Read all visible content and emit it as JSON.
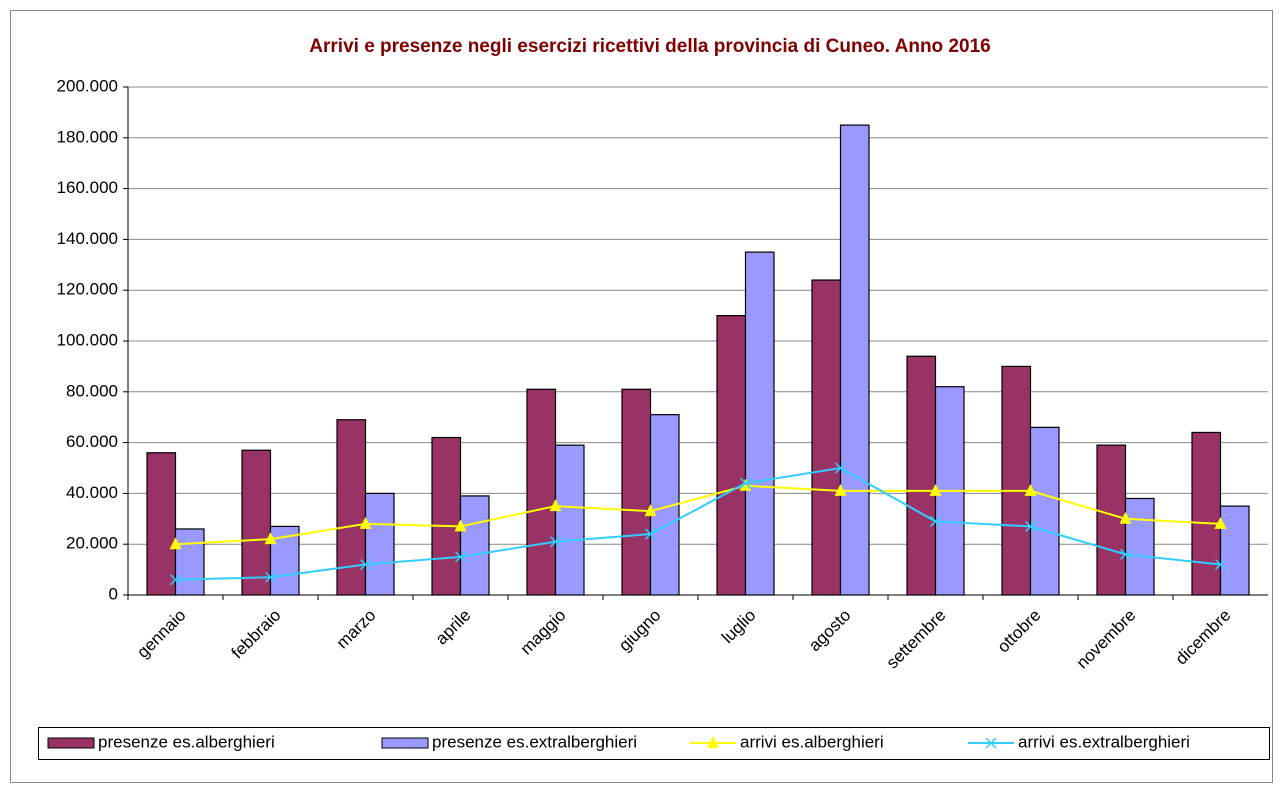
{
  "chart_data": {
    "type": "bar",
    "title": "Arrivi e presenze negli esercizi ricettivi della provincia di Cuneo. Anno 2016",
    "title_color": "#800000",
    "categories": [
      "gennaio",
      "febbraio",
      "marzo",
      "aprile",
      "maggio",
      "giugno",
      "luglio",
      "agosto",
      "settembre",
      "ottobre",
      "novembre",
      "dicembre"
    ],
    "series": [
      {
        "name": "presenze es.alberghieri",
        "color": "#993366",
        "values": [
          56000,
          57000,
          69000,
          62000,
          81000,
          81000,
          110000,
          124000,
          94000,
          90000,
          59000,
          64000
        ]
      },
      {
        "name": "presenze es.extralberghieri",
        "color": "#9999ff",
        "values": [
          26000,
          27000,
          40000,
          39000,
          59000,
          71000,
          135000,
          185000,
          82000,
          66000,
          38000,
          35000
        ]
      },
      {
        "name": "arrivi es.alberghieri",
        "color": "#ffff00",
        "type": "line",
        "marker": "triangle",
        "values": [
          20000,
          22000,
          28000,
          27000,
          35000,
          33000,
          43000,
          41000,
          41000,
          41000,
          30000,
          28000
        ]
      },
      {
        "name": "arrivi es.extralberghieri",
        "color": "#33ccff",
        "type": "line",
        "marker": "x",
        "values": [
          6000,
          7000,
          12000,
          15000,
          21000,
          24000,
          44000,
          50000,
          29000,
          27000,
          16000,
          12000
        ]
      }
    ],
    "ylim": [
      0,
      200000
    ],
    "yticks": [
      0,
      {
        "value": 20000,
        "label": "20.000"
      },
      {
        "value": 40000,
        "label": "40.000"
      },
      {
        "value": 60000,
        "label": "60.000"
      },
      {
        "value": 80000,
        "label": "80.000"
      },
      {
        "value": 100000,
        "label": "100.000"
      },
      {
        "value": 120000,
        "label": "120.000"
      },
      {
        "value": 140000,
        "label": "140.000"
      },
      {
        "value": 160000,
        "label": "160.000"
      },
      {
        "value": 180000,
        "label": "180.000"
      },
      {
        "value": 200000,
        "label": "200.000"
      }
    ],
    "grid": true,
    "legend": "bottom"
  }
}
